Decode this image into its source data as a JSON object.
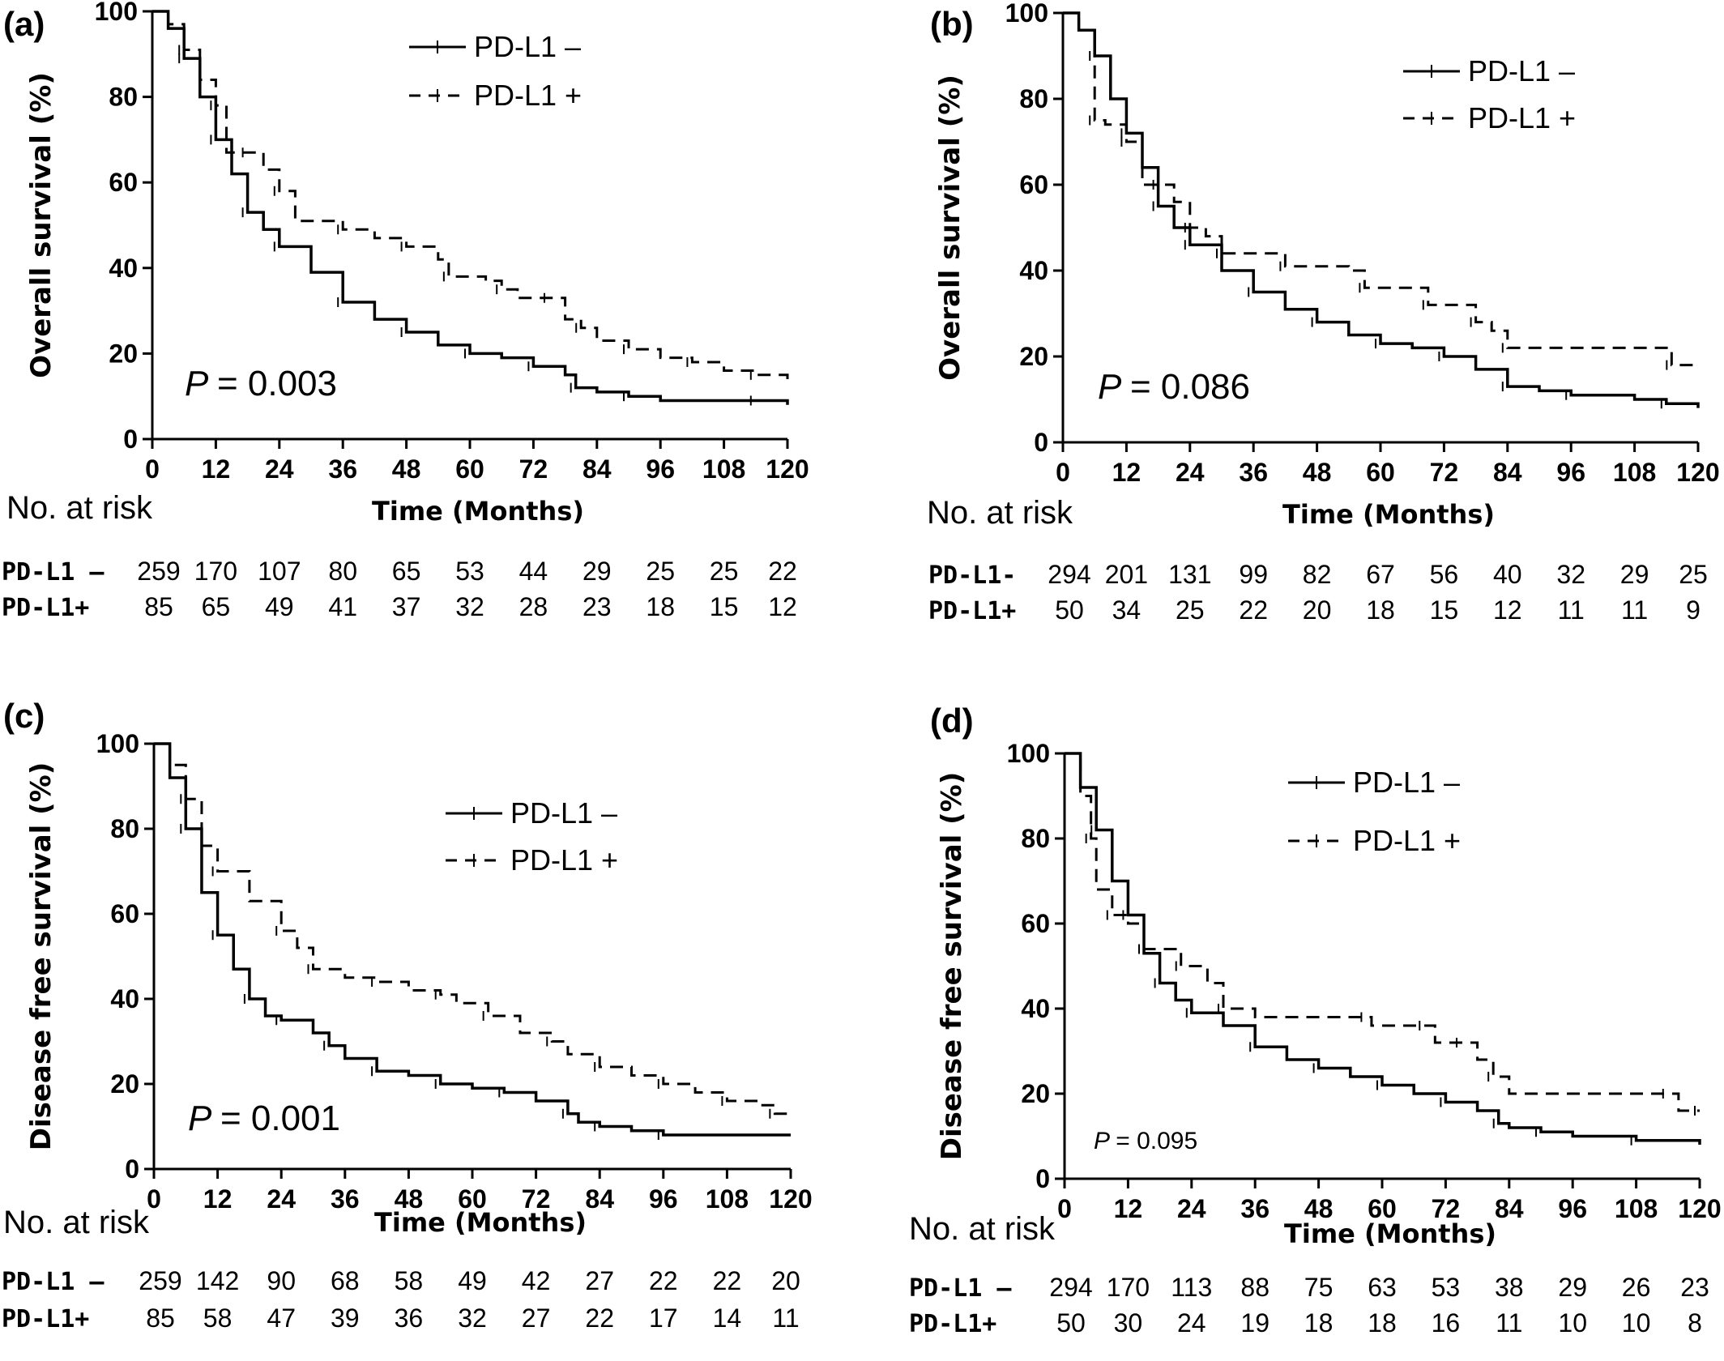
{
  "chart_data": [
    {
      "type": "line",
      "panel_label": "(a)",
      "ylabel": "Overall survival (%)",
      "xlabel": "Time (Months)",
      "xlim": [
        0,
        120
      ],
      "ylim": [
        0,
        100
      ],
      "x_ticks": [
        0,
        12,
        24,
        36,
        48,
        60,
        72,
        84,
        96,
        108,
        120
      ],
      "y_ticks": [
        0,
        20,
        40,
        60,
        80,
        100
      ],
      "legend_position": "top-right",
      "p_text": "= 0.003",
      "p_symbol": "P",
      "series": [
        {
          "name": "PD-L1 –",
          "style": "solid",
          "points": [
            [
              0,
              100
            ],
            [
              3,
              96
            ],
            [
              6,
              89
            ],
            [
              9,
              80
            ],
            [
              12,
              70
            ],
            [
              15,
              62
            ],
            [
              18,
              53
            ],
            [
              21,
              49
            ],
            [
              24,
              45
            ],
            [
              30,
              39
            ],
            [
              36,
              32
            ],
            [
              42,
              28
            ],
            [
              48,
              25
            ],
            [
              54,
              22
            ],
            [
              60,
              20
            ],
            [
              66,
              19
            ],
            [
              72,
              17
            ],
            [
              78,
              15
            ],
            [
              80,
              12
            ],
            [
              84,
              11
            ],
            [
              90,
              10
            ],
            [
              96,
              9
            ],
            [
              114,
              9
            ],
            [
              120,
              8
            ]
          ]
        },
        {
          "name": "PD-L1 +",
          "style": "dashed",
          "points": [
            [
              0,
              100
            ],
            [
              3,
              97
            ],
            [
              6,
              91
            ],
            [
              9,
              84
            ],
            [
              12,
              78
            ],
            [
              14,
              67
            ],
            [
              18,
              67
            ],
            [
              21,
              63
            ],
            [
              24,
              58
            ],
            [
              27,
              51
            ],
            [
              36,
              49
            ],
            [
              42,
              47
            ],
            [
              48,
              45
            ],
            [
              54,
              42
            ],
            [
              56,
              38
            ],
            [
              63,
              37
            ],
            [
              66,
              35
            ],
            [
              69,
              33
            ],
            [
              75,
              33
            ],
            [
              78,
              28
            ],
            [
              81,
              26
            ],
            [
              84,
              23
            ],
            [
              90,
              21
            ],
            [
              96,
              19
            ],
            [
              102,
              18
            ],
            [
              108,
              16
            ],
            [
              114,
              15
            ],
            [
              120,
              14
            ]
          ]
        }
      ],
      "risk_header": "No. at risk",
      "risk_rows": [
        {
          "label": "PD-L1 –",
          "values": [
            "259",
            "170",
            "107",
            "80",
            "65",
            "53",
            "44",
            "29",
            "25",
            "25",
            "22"
          ]
        },
        {
          "label": "PD-L1+",
          "values": [
            "85",
            "65",
            "49",
            "41",
            "37",
            "32",
            "28",
            "23",
            "18",
            "15",
            "12"
          ]
        }
      ]
    },
    {
      "type": "line",
      "panel_label": "(b)",
      "ylabel": "Overall survival (%)",
      "xlabel": "Time (Months)",
      "xlim": [
        0,
        120
      ],
      "ylim": [
        0,
        100
      ],
      "x_ticks": [
        0,
        12,
        24,
        36,
        48,
        60,
        72,
        84,
        96,
        108,
        120
      ],
      "y_ticks": [
        0,
        20,
        40,
        60,
        80,
        100
      ],
      "legend_position": "top-right",
      "p_text": "= 0.086",
      "p_symbol": "P",
      "series": [
        {
          "name": "PD-L1 –",
          "style": "solid",
          "points": [
            [
              0,
              100
            ],
            [
              3,
              96
            ],
            [
              6,
              90
            ],
            [
              9,
              80
            ],
            [
              12,
              72
            ],
            [
              15,
              64
            ],
            [
              18,
              55
            ],
            [
              21,
              50
            ],
            [
              24,
              46
            ],
            [
              30,
              40
            ],
            [
              36,
              35
            ],
            [
              42,
              31
            ],
            [
              48,
              28
            ],
            [
              54,
              25
            ],
            [
              60,
              23
            ],
            [
              66,
              22
            ],
            [
              72,
              20
            ],
            [
              78,
              17
            ],
            [
              84,
              13
            ],
            [
              90,
              12
            ],
            [
              96,
              11
            ],
            [
              108,
              10
            ],
            [
              114,
              9
            ],
            [
              120,
              8
            ]
          ]
        },
        {
          "name": "PD-L1 +",
          "style": "dashed",
          "points": [
            [
              0,
              100
            ],
            [
              3,
              96
            ],
            [
              6,
              75
            ],
            [
              8,
              74
            ],
            [
              12,
              70
            ],
            [
              15,
              60
            ],
            [
              18,
              60
            ],
            [
              21,
              56
            ],
            [
              24,
              50
            ],
            [
              27,
              48
            ],
            [
              30,
              44
            ],
            [
              36,
              44
            ],
            [
              42,
              41
            ],
            [
              54,
              40
            ],
            [
              57,
              36
            ],
            [
              66,
              36
            ],
            [
              69,
              32
            ],
            [
              75,
              32
            ],
            [
              78,
              28
            ],
            [
              81,
              26
            ],
            [
              84,
              22
            ],
            [
              114,
              22
            ],
            [
              115,
              18
            ],
            [
              120,
              18
            ]
          ]
        }
      ],
      "risk_header": "No. at risk",
      "risk_rows": [
        {
          "label": "PD-L1-",
          "values": [
            "294",
            "201",
            "131",
            "99",
            "82",
            "67",
            "56",
            "40",
            "32",
            "29",
            "25"
          ]
        },
        {
          "label": "PD-L1+",
          "values": [
            "50",
            "34",
            "25",
            "22",
            "20",
            "18",
            "15",
            "12",
            "11",
            "11",
            "9"
          ]
        }
      ]
    },
    {
      "type": "line",
      "panel_label": "(c)",
      "ylabel": "Disease free survival (%)",
      "xlabel": "Time (Months)",
      "xlim": [
        0,
        120
      ],
      "ylim": [
        0,
        100
      ],
      "x_ticks": [
        0,
        12,
        24,
        36,
        48,
        60,
        72,
        84,
        96,
        108,
        120
      ],
      "y_ticks": [
        0,
        20,
        40,
        60,
        80,
        100
      ],
      "legend_position": "top-right",
      "p_text": "= 0.001",
      "p_symbol": "P",
      "series": [
        {
          "name": "PD-L1 –",
          "style": "solid",
          "points": [
            [
              0,
              100
            ],
            [
              3,
              92
            ],
            [
              6,
              80
            ],
            [
              9,
              65
            ],
            [
              12,
              55
            ],
            [
              15,
              47
            ],
            [
              18,
              40
            ],
            [
              21,
              36
            ],
            [
              24,
              35
            ],
            [
              30,
              32
            ],
            [
              33,
              29
            ],
            [
              36,
              26
            ],
            [
              42,
              23
            ],
            [
              48,
              22
            ],
            [
              54,
              20
            ],
            [
              60,
              19
            ],
            [
              66,
              18
            ],
            [
              72,
              16
            ],
            [
              78,
              13
            ],
            [
              80,
              11
            ],
            [
              84,
              10
            ],
            [
              90,
              9
            ],
            [
              96,
              8
            ],
            [
              120,
              8
            ]
          ]
        },
        {
          "name": "PD-L1 +",
          "style": "dashed",
          "points": [
            [
              0,
              100
            ],
            [
              3,
              95
            ],
            [
              6,
              87
            ],
            [
              9,
              76
            ],
            [
              12,
              70
            ],
            [
              18,
              63
            ],
            [
              24,
              56
            ],
            [
              27,
              52
            ],
            [
              30,
              47
            ],
            [
              36,
              45
            ],
            [
              42,
              44
            ],
            [
              48,
              42
            ],
            [
              54,
              41
            ],
            [
              57,
              39
            ],
            [
              63,
              36
            ],
            [
              69,
              32
            ],
            [
              75,
              30
            ],
            [
              78,
              27
            ],
            [
              84,
              24
            ],
            [
              90,
              22
            ],
            [
              96,
              20
            ],
            [
              102,
              18
            ],
            [
              108,
              16
            ],
            [
              114,
              15
            ],
            [
              117,
              13
            ],
            [
              120,
              13
            ]
          ]
        }
      ],
      "risk_header": "No. at risk",
      "risk_rows": [
        {
          "label": "PD-L1 –",
          "values": [
            "259",
            "142",
            "90",
            "68",
            "58",
            "49",
            "42",
            "27",
            "22",
            "22",
            "20"
          ]
        },
        {
          "label": "PD-L1+",
          "values": [
            "85",
            "58",
            "47",
            "39",
            "36",
            "32",
            "27",
            "22",
            "17",
            "14",
            "11"
          ]
        }
      ]
    },
    {
      "type": "line",
      "panel_label": "(d)",
      "ylabel": "Disease free survival (%)",
      "xlabel": "Time (Months)",
      "xlim": [
        0,
        120
      ],
      "ylim": [
        0,
        100
      ],
      "x_ticks": [
        0,
        12,
        24,
        36,
        48,
        60,
        72,
        84,
        96,
        108,
        120
      ],
      "y_ticks": [
        0,
        20,
        40,
        60,
        80,
        100
      ],
      "legend_position": "top-right",
      "p_text": "= 0.095",
      "p_symbol": "P",
      "series": [
        {
          "name": "PD-L1 –",
          "style": "solid",
          "points": [
            [
              0,
              100
            ],
            [
              3,
              92
            ],
            [
              6,
              82
            ],
            [
              9,
              70
            ],
            [
              12,
              62
            ],
            [
              15,
              53
            ],
            [
              18,
              46
            ],
            [
              21,
              42
            ],
            [
              24,
              39
            ],
            [
              30,
              36
            ],
            [
              36,
              31
            ],
            [
              42,
              28
            ],
            [
              48,
              26
            ],
            [
              54,
              24
            ],
            [
              60,
              22
            ],
            [
              66,
              20
            ],
            [
              72,
              18
            ],
            [
              78,
              16
            ],
            [
              82,
              13
            ],
            [
              84,
              12
            ],
            [
              90,
              11
            ],
            [
              96,
              10
            ],
            [
              108,
              9
            ],
            [
              120,
              8
            ]
          ]
        },
        {
          "name": "PD-L1 +",
          "style": "dashed",
          "points": [
            [
              0,
              100
            ],
            [
              3,
              90
            ],
            [
              5,
              80
            ],
            [
              6,
              68
            ],
            [
              9,
              62
            ],
            [
              12,
              60
            ],
            [
              15,
              54
            ],
            [
              21,
              54
            ],
            [
              22,
              50
            ],
            [
              27,
              46
            ],
            [
              30,
              40
            ],
            [
              36,
              38
            ],
            [
              57,
              38
            ],
            [
              58,
              36
            ],
            [
              68,
              36
            ],
            [
              70,
              32
            ],
            [
              75,
              32
            ],
            [
              78,
              28
            ],
            [
              81,
              24
            ],
            [
              84,
              20
            ],
            [
              114,
              20
            ],
            [
              116,
              16
            ],
            [
              120,
              16
            ]
          ]
        }
      ],
      "risk_header": "No. at risk",
      "risk_rows": [
        {
          "label": "PD-L1 –",
          "values": [
            "294",
            "170",
            "113",
            "88",
            "75",
            "63",
            "53",
            "38",
            "29",
            "26",
            "23"
          ]
        },
        {
          "label": "PD-L1+",
          "values": [
            "50",
            "30",
            "24",
            "19",
            "18",
            "18",
            "16",
            "11",
            "10",
            "10",
            "8"
          ]
        }
      ]
    }
  ]
}
